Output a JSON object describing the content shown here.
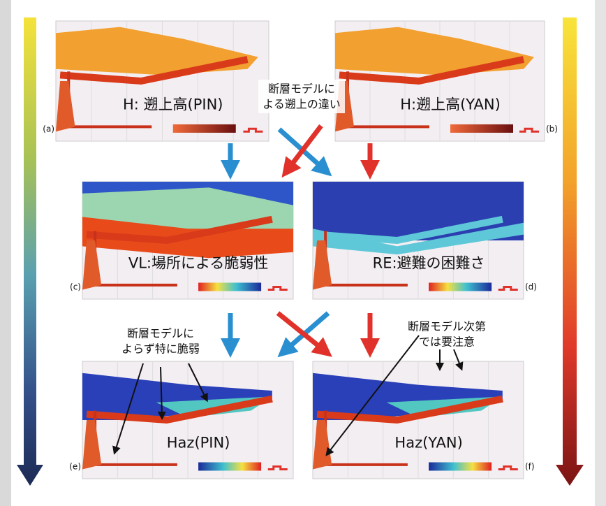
{
  "panels": [
    {
      "label": "(a)",
      "title": "H: 遡上高(PIN)"
    },
    {
      "label": "(b)",
      "title": "H:遡上高(YAN)"
    },
    {
      "label": "(c)",
      "title": "VL:場所による脆弱性"
    },
    {
      "label": "(d)",
      "title": "RE:避難の困難さ"
    },
    {
      "label": "(e)",
      "title": "Haz(PIN)"
    },
    {
      "label": "(f)",
      "title": "Haz(YAN)"
    }
  ],
  "annotations": [
    {
      "lines": [
        "断層モデルに",
        "よる遡上の違い"
      ]
    },
    {
      "lines": [
        "断層モデルに",
        "よらず特に脆弱"
      ]
    },
    {
      "lines": [
        "断層モデル次第",
        "では要注意"
      ]
    }
  ]
}
